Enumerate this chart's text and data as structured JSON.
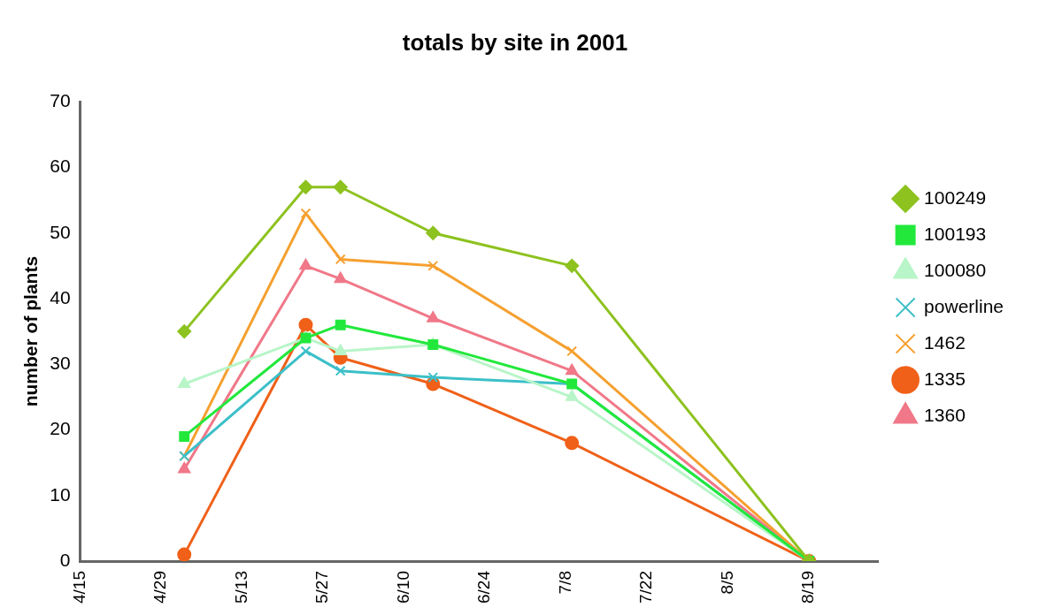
{
  "chart_data": {
    "type": "line",
    "title": "totals by site in 2001",
    "ylabel": "number of plants",
    "x": [
      "2001-05-03",
      "2001-05-24",
      "2001-05-30",
      "2001-06-15",
      "2001-07-09",
      "2001-08-19"
    ],
    "xlim": [
      "2001-04-15",
      "2001-08-31"
    ],
    "xticks": [
      {
        "value": "2001-04-15",
        "label": "4/15"
      },
      {
        "value": "2001-04-29",
        "label": "4/29"
      },
      {
        "value": "2001-05-13",
        "label": "5/13"
      },
      {
        "value": "2001-05-27",
        "label": "5/27"
      },
      {
        "value": "2001-06-10",
        "label": "6/10"
      },
      {
        "value": "2001-06-24",
        "label": "6/24"
      },
      {
        "value": "2001-07-08",
        "label": "7/8"
      },
      {
        "value": "2001-07-22",
        "label": "7/22"
      },
      {
        "value": "2001-08-05",
        "label": "8/5"
      },
      {
        "value": "2001-08-19",
        "label": "8/19"
      }
    ],
    "ylim": [
      0,
      70
    ],
    "yticks": [
      0,
      10,
      20,
      30,
      40,
      50,
      60,
      70
    ],
    "grid": false,
    "legend": "right",
    "line_style": "solid",
    "series": [
      {
        "name": "100249",
        "color": "#8dc21f",
        "marker": "diamond",
        "values": [
          35,
          57,
          57,
          50,
          45,
          0
        ]
      },
      {
        "name": "100193",
        "color": "#22e83c",
        "marker": "square",
        "values": [
          19,
          34,
          36,
          33,
          27,
          0
        ]
      },
      {
        "name": "100080",
        "color": "#b8f5c8",
        "marker": "triangle",
        "values": [
          27,
          34,
          32,
          33,
          25,
          0
        ]
      },
      {
        "name": "powerline",
        "color": "#3cbfc8",
        "marker": "cross",
        "values": [
          16,
          32,
          29,
          28,
          27,
          0
        ]
      },
      {
        "name": "1462",
        "color": "#f5a030",
        "marker": "cross",
        "values": [
          16,
          53,
          46,
          45,
          32,
          0
        ]
      },
      {
        "name": "1335",
        "color": "#f06018",
        "marker": "circle",
        "values": [
          1,
          36,
          31,
          27,
          18,
          0
        ]
      },
      {
        "name": "1360",
        "color": "#f07888",
        "marker": "triangle",
        "values": [
          14,
          45,
          43,
          37,
          29,
          0
        ]
      }
    ]
  }
}
